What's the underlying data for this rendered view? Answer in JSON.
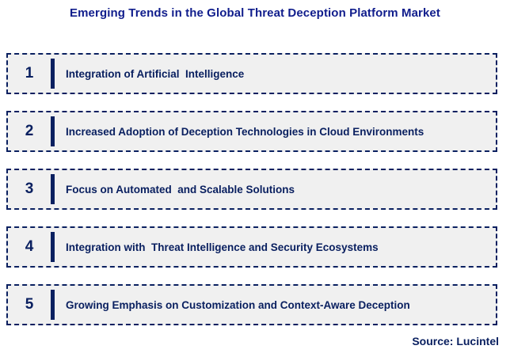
{
  "title": "Emerging Trends in the Global Threat Deception Platform Market",
  "source": "Source: Lucintel",
  "colors": {
    "title_text": "#101d8c",
    "item_text": "#0a2060",
    "box_border": "#0a2060",
    "box_background": "#f0f0f0",
    "accent_bar": "#0a2060",
    "page_background": "#ffffff"
  },
  "items": [
    {
      "number": "1",
      "label": "Integration of Artificial  Intelligence"
    },
    {
      "number": "2",
      "label": "Increased Adoption of Deception Technologies in Cloud Environments"
    },
    {
      "number": "3",
      "label": "Focus on Automated  and Scalable Solutions"
    },
    {
      "number": "4",
      "label": "Integration with  Threat Intelligence and Security Ecosystems"
    },
    {
      "number": "5",
      "label": "Growing Emphasis on Customization and Context-Aware Deception"
    }
  ]
}
